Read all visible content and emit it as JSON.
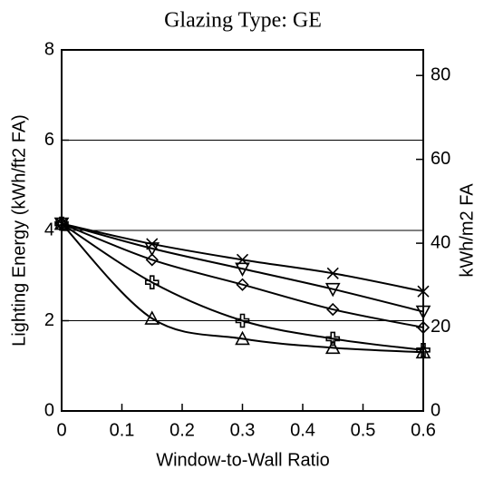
{
  "chart_data": {
    "type": "line",
    "title": "Glazing Type:  GE",
    "xlabel": "Window-to-Wall Ratio",
    "ylabel": "Lighting Energy (kWh/ft2 FA)",
    "y2label": "kWh/m2 FA",
    "x": [
      0,
      0.15,
      0.3,
      0.45,
      0.6
    ],
    "series": [
      {
        "color": "#000000",
        "marker": "x",
        "values": [
          4.15,
          3.7,
          3.35,
          3.05,
          2.65
        ]
      },
      {
        "color": "#000000",
        "marker": "triangle-down",
        "values": [
          4.15,
          3.6,
          3.15,
          2.7,
          2.2
        ]
      },
      {
        "color": "#000000",
        "marker": "diamond",
        "values": [
          4.15,
          3.35,
          2.8,
          2.25,
          1.85
        ]
      },
      {
        "color": "#000000",
        "marker": "plus",
        "values": [
          4.15,
          2.85,
          2.0,
          1.6,
          1.35
        ]
      },
      {
        "color": "#000000",
        "marker": "triangle-up",
        "values": [
          4.15,
          2.05,
          1.6,
          1.4,
          1.3
        ]
      }
    ],
    "xlim": [
      0,
      0.6
    ],
    "xticks": [
      0,
      0.1,
      0.2,
      0.3,
      0.4,
      0.5,
      0.6
    ],
    "ylim": [
      0,
      8
    ],
    "yticks": [
      0,
      2,
      4,
      6,
      8
    ],
    "y2lim": [
      0,
      86.1
    ],
    "y2ticks": [
      0,
      20,
      40,
      60,
      80
    ],
    "grid": true
  }
}
